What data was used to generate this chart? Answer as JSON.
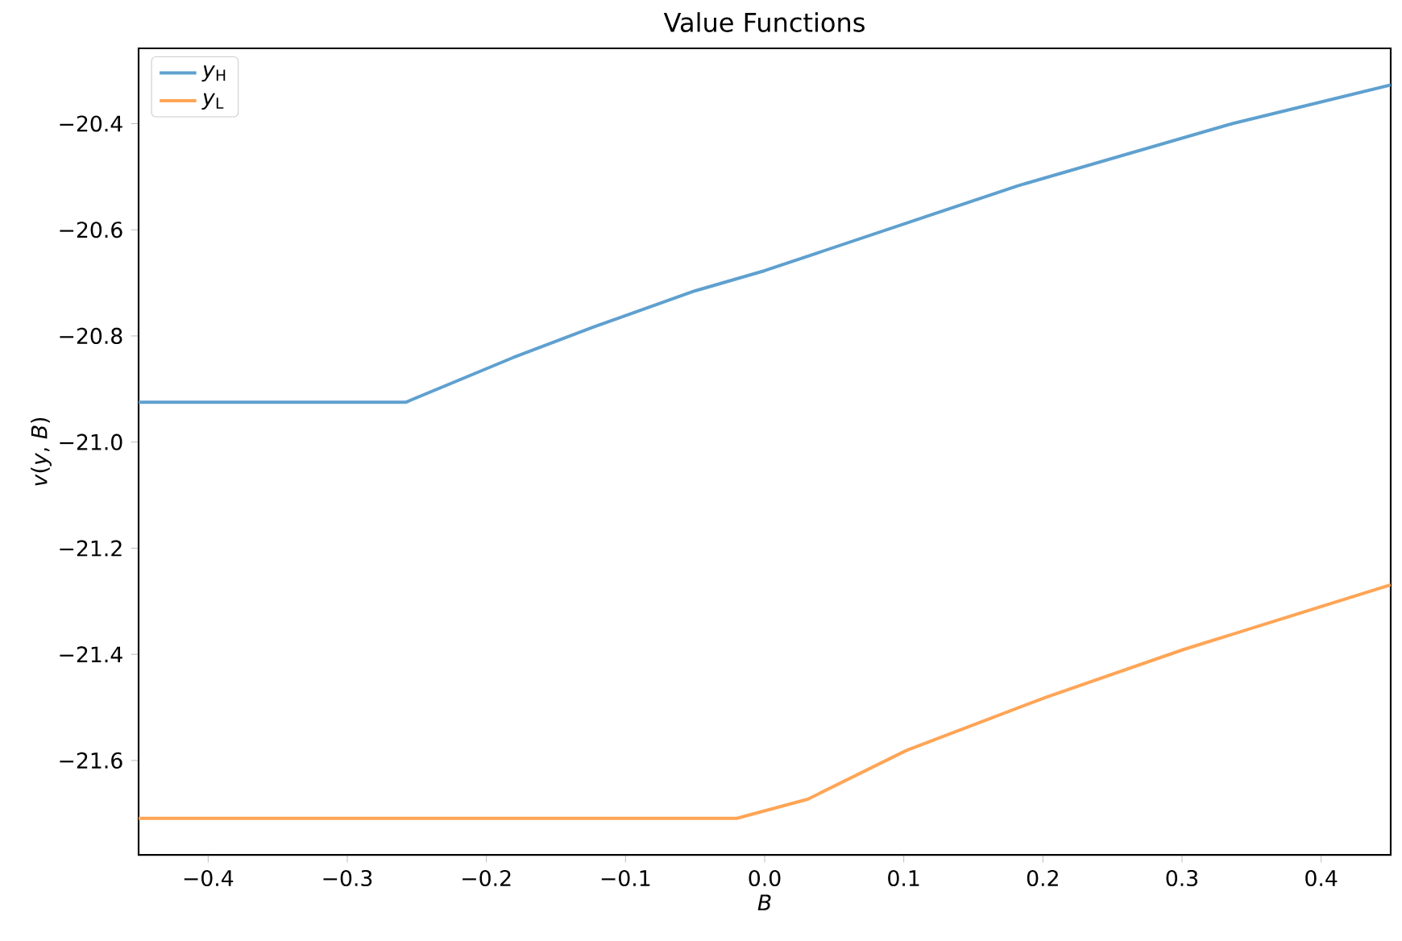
{
  "chart_data": {
    "type": "line",
    "title": "Value Functions",
    "xlabel": "B",
    "ylabel": "*v*(*y*, *B*)",
    "xlim": [
      -0.45,
      0.45
    ],
    "ylim": [
      -21.778,
      -20.258
    ],
    "xticks": [
      {
        "value": -0.4,
        "label": "−0.4"
      },
      {
        "value": -0.3,
        "label": "−0.3"
      },
      {
        "value": -0.2,
        "label": "−0.2"
      },
      {
        "value": -0.1,
        "label": "−0.1"
      },
      {
        "value": 0.0,
        "label": "0.0"
      },
      {
        "value": 0.1,
        "label": "0.1"
      },
      {
        "value": 0.2,
        "label": "0.2"
      },
      {
        "value": 0.3,
        "label": "0.3"
      },
      {
        "value": 0.4,
        "label": "0.4"
      }
    ],
    "yticks": [
      {
        "value": -21.6,
        "label": "−21.6"
      },
      {
        "value": -21.4,
        "label": "−21.4"
      },
      {
        "value": -21.2,
        "label": "−21.2"
      },
      {
        "value": -21.0,
        "label": "−21.0"
      },
      {
        "value": -20.8,
        "label": "−20.8"
      },
      {
        "value": -20.6,
        "label": "−20.6"
      },
      {
        "value": -20.4,
        "label": "−20.4"
      }
    ],
    "legend": "top left",
    "grid": false,
    "marker": "none",
    "line_style": "solid",
    "series": [
      {
        "name": "*y*$_{H}$",
        "color": "#5fa0cf",
        "x": [
          -0.45,
          -0.258,
          -0.181,
          -0.123,
          -0.05,
          0.0,
          0.182,
          0.336,
          0.45
        ],
        "values": [
          -20.925,
          -20.925,
          -20.841,
          -20.783,
          -20.715,
          -20.677,
          -20.517,
          -20.4,
          -20.327
        ]
      },
      {
        "name": "*y*$_{L}$",
        "color": "#ffa556",
        "x": [
          -0.45,
          -0.02,
          0.031,
          0.102,
          0.202,
          0.301,
          0.45
        ],
        "values": [
          -21.709,
          -21.709,
          -21.673,
          -21.581,
          -21.481,
          -21.391,
          -21.269
        ]
      }
    ]
  }
}
